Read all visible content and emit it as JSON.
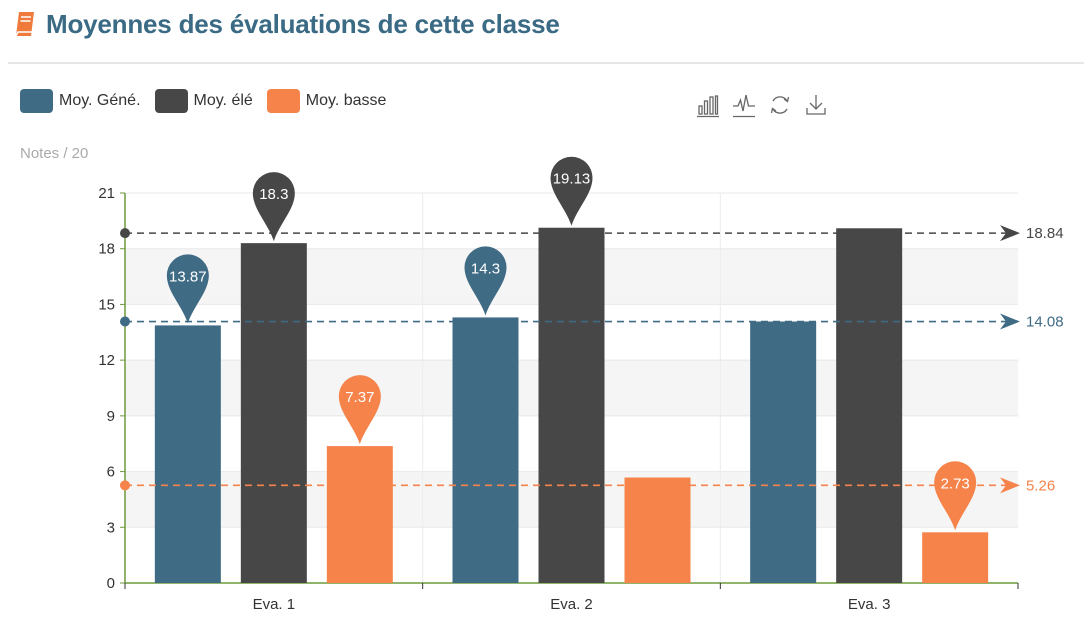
{
  "header": {
    "title": "Moyennes des évaluations de cette classe",
    "icon": "book-icon"
  },
  "toolbox": [
    {
      "name": "bar-chart-icon"
    },
    {
      "name": "line-chart-icon"
    },
    {
      "name": "refresh-icon"
    },
    {
      "name": "download-icon"
    }
  ],
  "chart_data": {
    "type": "bar",
    "title": "Moyennes des évaluations de cette classe",
    "ylabel": "Notes / 20",
    "xlabel": "",
    "ylim": [
      0,
      21
    ],
    "yticks": [
      "0",
      "3",
      "6",
      "9",
      "12",
      "15",
      "18",
      "21"
    ],
    "categories": [
      "Eva. 1",
      "Eva. 2",
      "Eva. 3"
    ],
    "legend_position": "top-left",
    "grid": true,
    "series": [
      {
        "name": "Moy. Géné.",
        "color": "#3f6b85",
        "values": [
          13.87,
          14.3,
          14.08
        ],
        "pins": [
          {
            "index": 0,
            "label": "13.87"
          },
          {
            "index": 1,
            "label": "14.3"
          }
        ],
        "average": {
          "value": 14.08,
          "label": "14.08"
        }
      },
      {
        "name": "Moy. élé",
        "color": "#474747",
        "values": [
          18.3,
          19.13,
          19.1
        ],
        "pins": [
          {
            "index": 0,
            "label": "18.3"
          },
          {
            "index": 1,
            "label": "19.13"
          }
        ],
        "average": {
          "value": 18.84,
          "label": "18.84"
        }
      },
      {
        "name": "Moy. basse",
        "color": "#f5834a",
        "values": [
          7.37,
          5.68,
          2.73
        ],
        "pins": [
          {
            "index": 0,
            "label": "7.37"
          },
          {
            "index": 2,
            "label": "2.73"
          }
        ],
        "average": {
          "value": 5.26,
          "label": "5.26"
        }
      }
    ]
  }
}
